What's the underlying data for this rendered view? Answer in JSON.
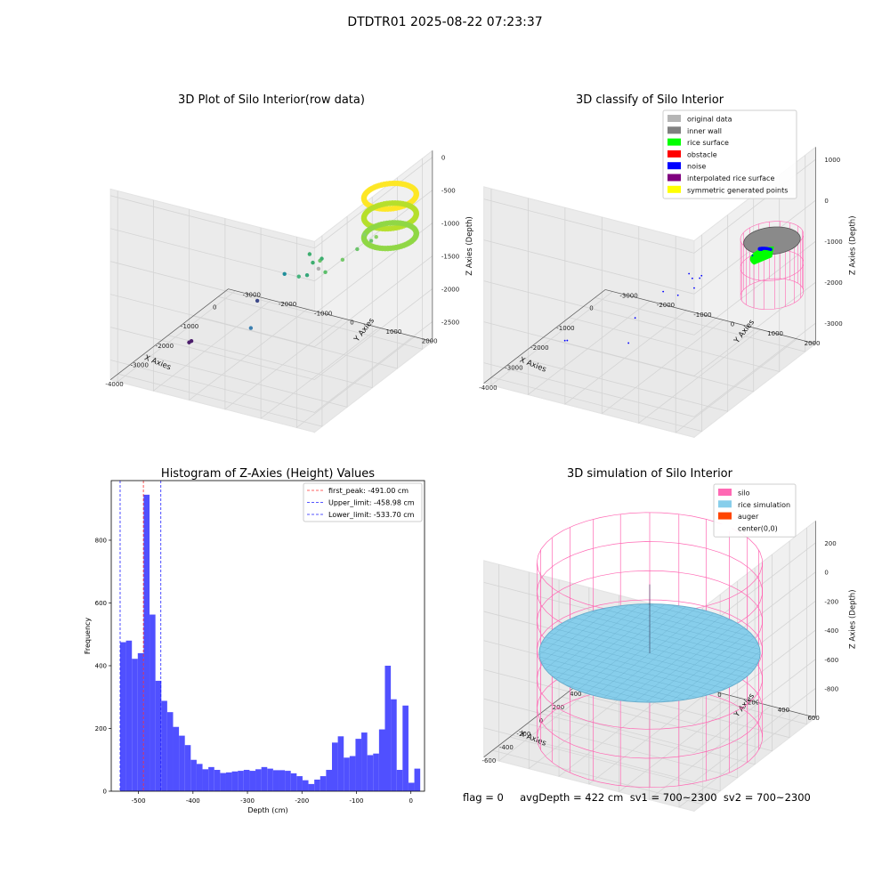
{
  "suptitle": "DTDTR01 2025-08-22 07:23:37",
  "footer": {
    "text": "flag = 0     avgDepth = 422 cm  sv1 = 700~2300  sv2 = 700~2300"
  },
  "chart_data": [
    {
      "type": "scatter",
      "projection": "3d",
      "title": "3D Plot of Silo Interior(row data)",
      "xlabel": "X Axies",
      "ylabel": "Y Axies",
      "zlabel": "Z Axies (Depth)",
      "xticks": [
        -4000,
        -3000,
        -2000,
        -1000,
        0
      ],
      "yticks": [
        -3000,
        -2000,
        -1000,
        0,
        1000,
        2000
      ],
      "zticks": [
        -2500,
        -2000,
        -1500,
        -1000,
        -500,
        0
      ],
      "xlim": [
        -4300,
        400
      ],
      "ylim": [
        -3200,
        2500
      ],
      "zlim": [
        -2800,
        100
      ],
      "colormap": "viridis",
      "points": [
        {
          "x": -2500,
          "y": -2200,
          "z": -2600,
          "color": "#4b1d6b"
        },
        {
          "x": -2450,
          "y": -2300,
          "z": -2650,
          "color": "#4b1d6b"
        },
        {
          "x": -1300,
          "y": -1200,
          "z": -2200,
          "color": "#3e4989"
        },
        {
          "x": -3700,
          "y": 300,
          "z": -1700,
          "color": "#3b7fb0"
        },
        {
          "x": -500,
          "y": -1000,
          "z": -2000,
          "color": "#1f8f9a"
        },
        {
          "x": -2500,
          "y": 800,
          "z": -1200,
          "color": "#47b47d"
        },
        {
          "x": -2000,
          "y": 1000,
          "z": -1200,
          "color": "#b0b0b0"
        },
        {
          "x": -1800,
          "y": 900,
          "z": -1150,
          "color": "#6cc46b"
        },
        {
          "x": -1600,
          "y": 400,
          "z": -1500,
          "color": "#35a67a"
        },
        {
          "x": -1300,
          "y": 700,
          "z": -1500,
          "color": "#5bbf6a"
        },
        {
          "x": -900,
          "y": 900,
          "z": -1400,
          "color": "#75c86a"
        },
        {
          "x": -800,
          "y": 0,
          "z": -1600,
          "color": "#3dae6f"
        },
        {
          "x": -500,
          "y": -300,
          "z": -1600,
          "color": "#3dae6f"
        },
        {
          "x": -300,
          "y": -100,
          "z": -1700,
          "color": "#3dae6f"
        },
        {
          "x": -900,
          "y": 1700,
          "z": -1000,
          "color": "#6cc46b"
        },
        {
          "x": -700,
          "y": 1700,
          "z": -1000,
          "color": "#8ad066"
        },
        {
          "x": -600,
          "y": 1300,
          "z": -1050,
          "color": "#8ad066"
        },
        {
          "x": -600,
          "y": 1100,
          "z": -1300,
          "color": "#6cc46b"
        }
      ],
      "ring": {
        "cx": 0,
        "cy": 1600,
        "r": 600,
        "z_top": -600,
        "z_bottom": -1200,
        "colors": [
          "#fde725",
          "#b5de2b",
          "#8fd744"
        ]
      }
    },
    {
      "type": "scatter",
      "projection": "3d",
      "title": "3D classify of Silo Interior",
      "xlabel": "X Axies",
      "ylabel": "Y Axies",
      "zlabel": "Z Axies (Depth)",
      "xticks": [
        -4000,
        -3000,
        -2000,
        -1000,
        0
      ],
      "yticks": [
        -3000,
        -2000,
        -1000,
        0,
        1000,
        2000
      ],
      "zticks": [
        -3000,
        -2000,
        -1000,
        0,
        1000
      ],
      "xlim": [
        -4300,
        400
      ],
      "ylim": [
        -3200,
        2500
      ],
      "zlim": [
        -3500,
        1300
      ],
      "legend": {
        "location": "upper right",
        "entries": [
          {
            "label": "original data",
            "color": "#b5b5b5"
          },
          {
            "label": "inner wall",
            "color": "#808080"
          },
          {
            "label": "rice surface",
            "color": "#00ff00"
          },
          {
            "label": "obstacle",
            "color": "#ff0000"
          },
          {
            "label": "noise",
            "color": "#0000ff"
          },
          {
            "label": "interpolated rice surface",
            "color": "#800080"
          },
          {
            "label": "symmetric generated points",
            "color": "#ffff00"
          }
        ]
      },
      "noise_points": [
        {
          "x": -2500,
          "y": -2200,
          "z": -3100
        },
        {
          "x": -2450,
          "y": -2300,
          "z": -3150
        },
        {
          "x": -1300,
          "y": -1200,
          "z": -2900
        },
        {
          "x": -3700,
          "y": 300,
          "z": -2000
        },
        {
          "x": -500,
          "y": -1000,
          "z": -2600
        },
        {
          "x": -2500,
          "y": 800,
          "z": -1300
        },
        {
          "x": -1800,
          "y": 900,
          "z": -1200
        },
        {
          "x": -1300,
          "y": 400,
          "z": -1800
        },
        {
          "x": -800,
          "y": 0,
          "z": -1900
        },
        {
          "x": -500,
          "y": -300,
          "z": -2000
        },
        {
          "x": -300,
          "y": -100,
          "z": -2100
        },
        {
          "x": -900,
          "y": 1700,
          "z": -900
        }
      ],
      "silo": {
        "cx": 0,
        "cy": 1600,
        "r": 700,
        "z_top": -900,
        "z_bottom": -2300
      }
    },
    {
      "type": "histogram",
      "title": "Histogram of Z-Axies (Height) Values",
      "xlabel": "Depth (cm)",
      "ylabel": "Frequency",
      "xlim": [
        -550,
        25
      ],
      "ylim": [
        0,
        990
      ],
      "xticks": [
        -500,
        -400,
        -300,
        -200,
        -100,
        0
      ],
      "yticks": [
        0,
        200,
        400,
        600,
        800
      ],
      "bin_start": -533.7,
      "bin_width": 10.8,
      "color": "#5050ff",
      "values": [
        475,
        480,
        422,
        440,
        945,
        563,
        352,
        288,
        252,
        205,
        177,
        147,
        100,
        87,
        70,
        77,
        68,
        58,
        60,
        63,
        65,
        68,
        65,
        70,
        77,
        72,
        67,
        67,
        65,
        57,
        48,
        35,
        23,
        37,
        48,
        68,
        155,
        175,
        107,
        112,
        167,
        187,
        115,
        120,
        197,
        400,
        293,
        68,
        273,
        27,
        72
      ],
      "lines": [
        {
          "label": "first_peak: -491.00 cm",
          "x": -491.0,
          "color": "#ff3030"
        },
        {
          "label": "Upper_limit: -458.98 cm",
          "x": -458.98,
          "color": "#2020ff"
        },
        {
          "label": "Lower_limit: -533.70 cm",
          "x": -533.7,
          "color": "#2020ff"
        }
      ]
    },
    {
      "type": "surface",
      "projection": "3d",
      "title": "3D simulation of Silo Interior",
      "xlabel": "X Axies",
      "ylabel": "Y Axies",
      "zlabel": "Z Axies (Depth)",
      "xticks": [
        -600,
        -400,
        -200,
        0,
        200,
        400,
        600
      ],
      "yticks": [
        -600,
        -400,
        -200,
        0,
        200,
        400,
        600
      ],
      "zticks": [
        -800,
        -600,
        -400,
        -200,
        0,
        200
      ],
      "xlim": [
        -700,
        700
      ],
      "ylim": [
        -700,
        700
      ],
      "zlim": [
        -1000,
        350
      ],
      "legend": {
        "location": "upper right",
        "entries": [
          {
            "label": "silo",
            "color": "#ff69b4"
          },
          {
            "label": "rice simulation",
            "color": "#87ceeb"
          },
          {
            "label": "auger",
            "color": "#ff4500"
          },
          {
            "label": "center(0,0)",
            "color": "#ffffff"
          }
        ]
      },
      "silo": {
        "r": 650,
        "z_top": 200,
        "z_bottom": -1000
      },
      "rice_surface_depth": -422
    }
  ]
}
